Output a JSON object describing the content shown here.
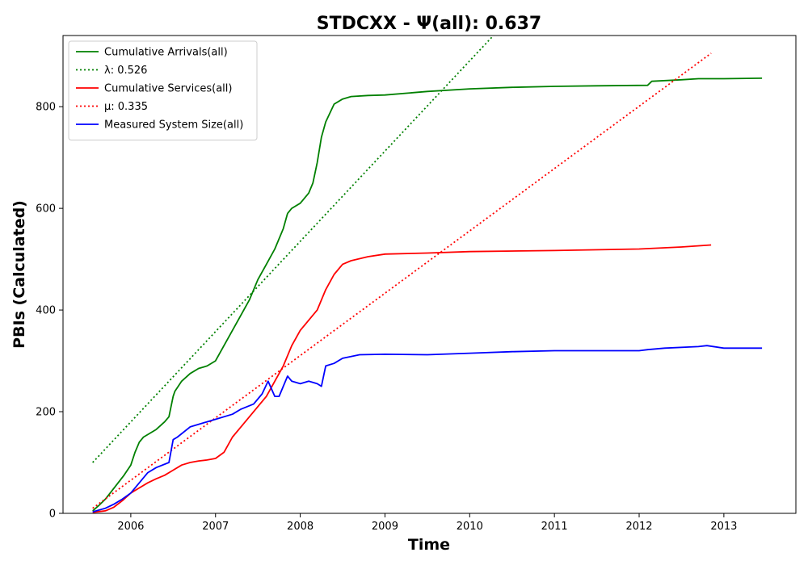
{
  "chart_data": {
    "type": "line",
    "title": "STDCXX -  Ψ(all): 0.637",
    "xlabel": "Time",
    "ylabel": "PBIs (Calculated)",
    "xlim": [
      2005.2,
      2013.85
    ],
    "ylim": [
      0,
      940
    ],
    "x_ticks": [
      2006,
      2007,
      2008,
      2009,
      2010,
      2011,
      2012,
      2013
    ],
    "x_tick_labels": [
      "2006",
      "2007",
      "2008",
      "2009",
      "2010",
      "2011",
      "2012",
      "2013"
    ],
    "y_ticks": [
      0,
      200,
      400,
      600,
      800
    ],
    "y_tick_labels": [
      "0",
      "200",
      "400",
      "600",
      "800"
    ],
    "grid": false,
    "legend_position": "top-left",
    "legend": [
      "Cumulative Arrivals(all)",
      "λ: 0.526",
      "Cumulative Services(all)",
      "μ: 0.335",
      "Measured System Size(all)"
    ],
    "series": [
      {
        "name": "Cumulative Arrivals(all)",
        "color": "#008000",
        "style": "solid",
        "x": [
          2005.55,
          2005.62,
          2005.7,
          2005.78,
          2005.85,
          2005.92,
          2006.0,
          2006.05,
          2006.1,
          2006.15,
          2006.2,
          2006.3,
          2006.4,
          2006.45,
          2006.5,
          2006.52,
          2006.6,
          2006.7,
          2006.8,
          2006.9,
          2007.0,
          2007.1,
          2007.2,
          2007.3,
          2007.4,
          2007.5,
          2007.6,
          2007.7,
          2007.8,
          2007.85,
          2007.9,
          2008.0,
          2008.1,
          2008.15,
          2008.2,
          2008.25,
          2008.3,
          2008.4,
          2008.5,
          2008.6,
          2008.8,
          2009.0,
          2009.5,
          2010.0,
          2010.5,
          2011.0,
          2011.5,
          2012.1,
          2012.15,
          2012.5,
          2012.7,
          2013.0,
          2013.45
        ],
        "y": [
          5,
          15,
          28,
          45,
          60,
          75,
          95,
          120,
          140,
          150,
          155,
          165,
          180,
          190,
          230,
          240,
          260,
          275,
          285,
          290,
          300,
          330,
          360,
          390,
          420,
          460,
          490,
          520,
          560,
          590,
          600,
          610,
          630,
          650,
          690,
          740,
          770,
          805,
          815,
          820,
          822,
          823,
          830,
          835,
          838,
          840,
          841,
          842,
          850,
          853,
          855,
          855,
          856
        ]
      },
      {
        "name": "λ: 0.526",
        "color": "#008000",
        "style": "dotted",
        "x": [
          2005.55,
          2010.28
        ],
        "y": [
          100,
          940
        ]
      },
      {
        "name": "Cumulative Services(all)",
        "color": "#ff0000",
        "style": "solid",
        "x": [
          2005.55,
          2005.7,
          2005.8,
          2005.9,
          2006.0,
          2006.1,
          2006.2,
          2006.3,
          2006.4,
          2006.5,
          2006.6,
          2006.7,
          2006.8,
          2006.9,
          2007.0,
          2007.1,
          2007.2,
          2007.3,
          2007.4,
          2007.5,
          2007.6,
          2007.7,
          2007.8,
          2007.9,
          2008.0,
          2008.1,
          2008.2,
          2008.3,
          2008.4,
          2008.5,
          2008.6,
          2008.8,
          2009.0,
          2009.5,
          2010.0,
          2011.0,
          2012.0,
          2012.5,
          2012.85
        ],
        "y": [
          2,
          5,
          12,
          25,
          40,
          50,
          60,
          68,
          75,
          85,
          95,
          100,
          103,
          105,
          108,
          120,
          150,
          170,
          190,
          210,
          230,
          260,
          290,
          330,
          360,
          380,
          400,
          440,
          470,
          490,
          497,
          505,
          510,
          512,
          515,
          517,
          520,
          524,
          528
        ]
      },
      {
        "name": "μ: 0.335",
        "color": "#ff0000",
        "style": "dotted",
        "x": [
          2005.55,
          2012.85
        ],
        "y": [
          10,
          905
        ]
      },
      {
        "name": "Measured System Size(all)",
        "color": "#0000ff",
        "style": "solid",
        "x": [
          2005.55,
          2005.7,
          2005.8,
          2005.9,
          2006.0,
          2006.1,
          2006.2,
          2006.3,
          2006.45,
          2006.5,
          2006.55,
          2006.7,
          2006.9,
          2007.0,
          2007.2,
          2007.3,
          2007.45,
          2007.55,
          2007.62,
          2007.7,
          2007.75,
          2007.8,
          2007.85,
          2007.9,
          2008.0,
          2008.1,
          2008.2,
          2008.25,
          2008.3,
          2008.4,
          2008.5,
          2008.7,
          2009.0,
          2009.5,
          2010.0,
          2010.5,
          2011.0,
          2012.0,
          2012.1,
          2012.3,
          2012.7,
          2012.8,
          2013.0,
          2013.45
        ],
        "y": [
          3,
          10,
          18,
          28,
          40,
          60,
          80,
          90,
          100,
          145,
          150,
          170,
          180,
          185,
          195,
          205,
          215,
          235,
          260,
          230,
          230,
          250,
          270,
          260,
          255,
          260,
          255,
          250,
          290,
          295,
          305,
          312,
          313,
          312,
          315,
          318,
          320,
          320,
          322,
          325,
          328,
          330,
          325,
          325
        ]
      }
    ]
  }
}
